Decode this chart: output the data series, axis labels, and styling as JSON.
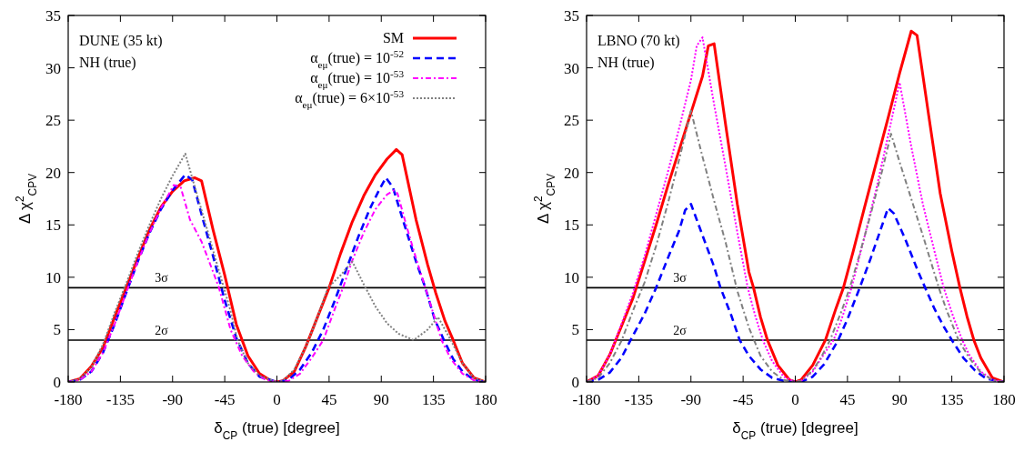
{
  "chart_data": [
    {
      "type": "line",
      "xlabel": "δ$_{CP}$ (true) [degree]",
      "ylabel": "Δ χ$^{2}$$_{CPV}$",
      "annotations": [
        "DUNE (35 kt)",
        "NH (true)"
      ],
      "xlim": [
        -180,
        180
      ],
      "ylim": [
        0,
        35
      ],
      "xticks": [
        -180,
        -135,
        -90,
        -45,
        0,
        45,
        90,
        135,
        180
      ],
      "yticks": [
        0,
        5,
        10,
        15,
        20,
        25,
        30,
        35
      ],
      "grid": false,
      "legend": "top right",
      "marker": "none",
      "ref_lines": [
        {
          "axis": "y",
          "value": 9,
          "label": "3σ",
          "color": "#000000"
        },
        {
          "axis": "y",
          "value": 4,
          "label": "2σ",
          "color": "#000000"
        }
      ],
      "series": [
        {
          "name": "SM",
          "color": "#ff0000",
          "line_style": "solid",
          "x": [
            -180,
            -170,
            -160,
            -150,
            -140,
            -130,
            -120,
            -110,
            -100,
            -90,
            -80,
            -71,
            -65,
            -55,
            -45,
            -35,
            -25,
            -15,
            -5,
            0,
            5,
            15,
            25,
            35,
            45,
            55,
            65,
            75,
            85,
            95,
            103,
            108,
            120,
            130,
            137,
            145,
            152,
            160,
            170,
            180
          ],
          "values": [
            0,
            0.3,
            1.5,
            3.3,
            6.2,
            9,
            11.8,
            14.5,
            16.7,
            18.2,
            19.2,
            19.5,
            19.2,
            14.5,
            10.2,
            5.5,
            2.5,
            0.8,
            0.1,
            0,
            0.1,
            1,
            3.4,
            6.2,
            9,
            12.3,
            15.3,
            17.8,
            19.8,
            21.3,
            22.2,
            21.7,
            15.5,
            11.2,
            8.5,
            5.8,
            4,
            1.8,
            0.4,
            0
          ]
        },
        {
          "name": "α$_{eμ}$(true) = 10$^{-52}$",
          "color": "#0000ff",
          "line_style": "dashed",
          "x": [
            -180,
            -170,
            -160,
            -150,
            -140,
            -130,
            -120,
            -110,
            -100,
            -90,
            -79,
            -73,
            -65,
            -55,
            -45,
            -35,
            -25,
            -15,
            0,
            10,
            20,
            30,
            40,
            50,
            60,
            70,
            80,
            88,
            94,
            100,
            110,
            120,
            128,
            136,
            144,
            152,
            160,
            170,
            180
          ],
          "values": [
            0,
            0.2,
            1,
            2.8,
            5.5,
            8.5,
            11.5,
            14.2,
            16.5,
            18.3,
            19.8,
            19.3,
            16,
            12,
            7.8,
            4.2,
            1.8,
            0.5,
            0,
            0.2,
            1.2,
            2.8,
            5,
            7.8,
            10.8,
            13.8,
            16.5,
            18.3,
            19.5,
            18.6,
            15,
            11.5,
            9,
            6,
            4,
            2.2,
            1,
            0.2,
            0
          ]
        },
        {
          "name": "α$_{eμ}$(true) = 10$^{-53}$",
          "color": "#ff00ff",
          "line_style": "dashdot",
          "x": [
            -180,
            -170,
            -160,
            -150,
            -140,
            -130,
            -120,
            -110,
            -100,
            -89,
            -83,
            -75,
            -65,
            -55,
            -50,
            -40,
            -30,
            -20,
            -10,
            0,
            10,
            20,
            30,
            40,
            50,
            57,
            65,
            75,
            85,
            95,
            101,
            104,
            112,
            120,
            128,
            135,
            142,
            150,
            160,
            170,
            180
          ],
          "values": [
            0,
            0.2,
            1,
            2.8,
            5.5,
            8.5,
            11.5,
            14.2,
            16.6,
            18.8,
            18.6,
            15.5,
            13.4,
            10.5,
            9,
            5,
            2.5,
            1,
            0.2,
            0,
            0.1,
            0.8,
            2.3,
            4,
            7,
            9,
            11.6,
            14.3,
            16.5,
            17.9,
            18.3,
            18,
            14.8,
            11.8,
            9,
            6.5,
            4,
            2.2,
            0.8,
            0.15,
            0
          ]
        },
        {
          "name": "α$_{eμ}$(true) = 6×10$^{-53}$",
          "color": "#808080",
          "line_style": "dotted",
          "x": [
            -180,
            -170,
            -160,
            -150,
            -140,
            -130,
            -120,
            -110,
            -100,
            -90,
            -79,
            -70,
            -60,
            -50,
            -45,
            -40,
            -34,
            -25,
            -15,
            0,
            5,
            15,
            25,
            35,
            44,
            55,
            65,
            75,
            85,
            95,
            105,
            118,
            130,
            139,
            145,
            150,
            160,
            170,
            180
          ],
          "values": [
            0,
            0.3,
            1.4,
            3.6,
            6.6,
            9.4,
            12.3,
            15,
            17.5,
            19.7,
            21.8,
            18.3,
            14.5,
            10.6,
            8.7,
            6.8,
            4,
            1.8,
            0.6,
            0,
            0.1,
            1.2,
            3.4,
            6.2,
            9,
            10.2,
            11.5,
            9.3,
            7.2,
            5.6,
            4.6,
            4,
            5,
            6.2,
            5,
            4,
            1.8,
            0.4,
            0
          ]
        }
      ]
    },
    {
      "type": "line",
      "xlabel": "δ$_{CP}$ (true) [degree]",
      "ylabel": "Δ χ$^{2}$$_{CPV}$",
      "annotations": [
        "LBNO (70 kt)",
        "NH (true)"
      ],
      "xlim": [
        -180,
        180
      ],
      "ylim": [
        0,
        35
      ],
      "xticks": [
        -180,
        -135,
        -90,
        -45,
        0,
        45,
        90,
        135,
        180
      ],
      "yticks": [
        0,
        5,
        10,
        15,
        20,
        25,
        30,
        35
      ],
      "grid": false,
      "legend": false,
      "marker": "none",
      "ref_lines": [
        {
          "axis": "y",
          "value": 9,
          "label": "3σ",
          "color": "#000000"
        },
        {
          "axis": "y",
          "value": 4,
          "label": "2σ",
          "color": "#000000"
        }
      ],
      "series": [
        {
          "color": "#ff0000",
          "line_style": "solid",
          "x": [
            -180,
            -170,
            -160,
            -150,
            -140,
            -130,
            -120,
            -110,
            -100,
            -90,
            -80,
            -75,
            -70,
            -60,
            -50,
            -40,
            -36,
            -30,
            -24,
            -15,
            -5,
            0,
            5,
            15,
            26,
            35,
            41.5,
            50,
            60,
            70,
            80,
            90,
            100,
            105,
            115,
            125,
            135,
            142,
            148,
            154,
            160,
            170,
            180
          ],
          "values": [
            0,
            0.6,
            2.6,
            5.3,
            8,
            11.5,
            15,
            18.7,
            22.2,
            25.7,
            29.2,
            32.1,
            32.3,
            24.5,
            17,
            10.5,
            9,
            6.2,
            4,
            1.6,
            0.2,
            0,
            0.2,
            1.6,
            4,
            7,
            9,
            12.5,
            16.8,
            21,
            25.2,
            29.5,
            33.5,
            33.1,
            25.5,
            18,
            12.5,
            9,
            6.3,
            4,
            2.3,
            0.4,
            0
          ]
        },
        {
          "color": "#0000ff",
          "line_style": "dashed",
          "x": [
            -180,
            -170,
            -160,
            -150,
            -142,
            -130,
            -120,
            -110,
            -100,
            -95,
            -90,
            -80,
            -70,
            -64.5,
            -55,
            -48,
            -40,
            -30,
            -20,
            -10,
            0,
            5,
            15,
            25,
            37,
            45,
            55.6,
            65,
            75,
            80,
            85,
            95,
            105,
            112,
            120,
            128,
            135,
            145,
            155,
            165,
            180
          ],
          "values": [
            0,
            0.2,
            0.9,
            2.3,
            4,
            6.5,
            9,
            11.8,
            14.5,
            16.4,
            17,
            14,
            11,
            9,
            6.3,
            4,
            2.5,
            1.2,
            0.4,
            0.1,
            0,
            0,
            0.5,
            1.7,
            4,
            6,
            9,
            11.8,
            15,
            16.6,
            16.1,
            13.6,
            10.8,
            9,
            7,
            5.3,
            4,
            2.3,
            1.1,
            0.3,
            0
          ]
        },
        {
          "color": "#ff00ff",
          "line_style": "dotted",
          "x": [
            -180,
            -170,
            -160,
            -150,
            -140,
            -130,
            -120,
            -110,
            -100,
            -90,
            -85,
            -80,
            -70,
            -60,
            -50,
            -41,
            -35,
            -28,
            -20,
            -10,
            0,
            5,
            15,
            25,
            33,
            40,
            48.5,
            60,
            70,
            80,
            90,
            100,
            110,
            120,
            128,
            136,
            144,
            150,
            160,
            170,
            180
          ],
          "values": [
            0,
            0.6,
            2.6,
            5.5,
            8.5,
            12,
            16,
            20,
            24.3,
            28.8,
            32.1,
            32.9,
            26.5,
            20.5,
            14.3,
            9,
            6.5,
            4,
            2,
            0.5,
            0,
            0.1,
            1,
            2.7,
            4,
            6,
            9,
            14,
            18.5,
            23.5,
            28.6,
            22.5,
            17,
            12.5,
            9,
            6.3,
            4,
            2.6,
            1,
            0.2,
            0
          ]
        },
        {
          "color": "#808080",
          "line_style": "dashdot",
          "x": [
            -180,
            -170,
            -160,
            -150,
            -140,
            -130,
            -120,
            -110,
            -100,
            -90,
            -80,
            -70,
            -60,
            -50,
            -40,
            -30,
            -20,
            -10,
            0,
            5,
            15,
            22,
            30,
            40,
            47,
            55,
            65,
            75,
            82.6,
            90,
            100,
            110,
            123.8,
            130,
            140.8,
            150,
            160,
            170,
            180
          ],
          "values": [
            0,
            0.4,
            1.8,
            3.9,
            6.8,
            9.5,
            13,
            17,
            21.3,
            25.9,
            21.5,
            17.3,
            13.3,
            8.7,
            5.2,
            2.5,
            1,
            0.2,
            0,
            0.1,
            1.1,
            2.3,
            4,
            6.8,
            9,
            12,
            16,
            20.2,
            23.7,
            21,
            17.5,
            14,
            9,
            7,
            4,
            2.3,
            0.9,
            0.2,
            0
          ]
        }
      ]
    }
  ]
}
